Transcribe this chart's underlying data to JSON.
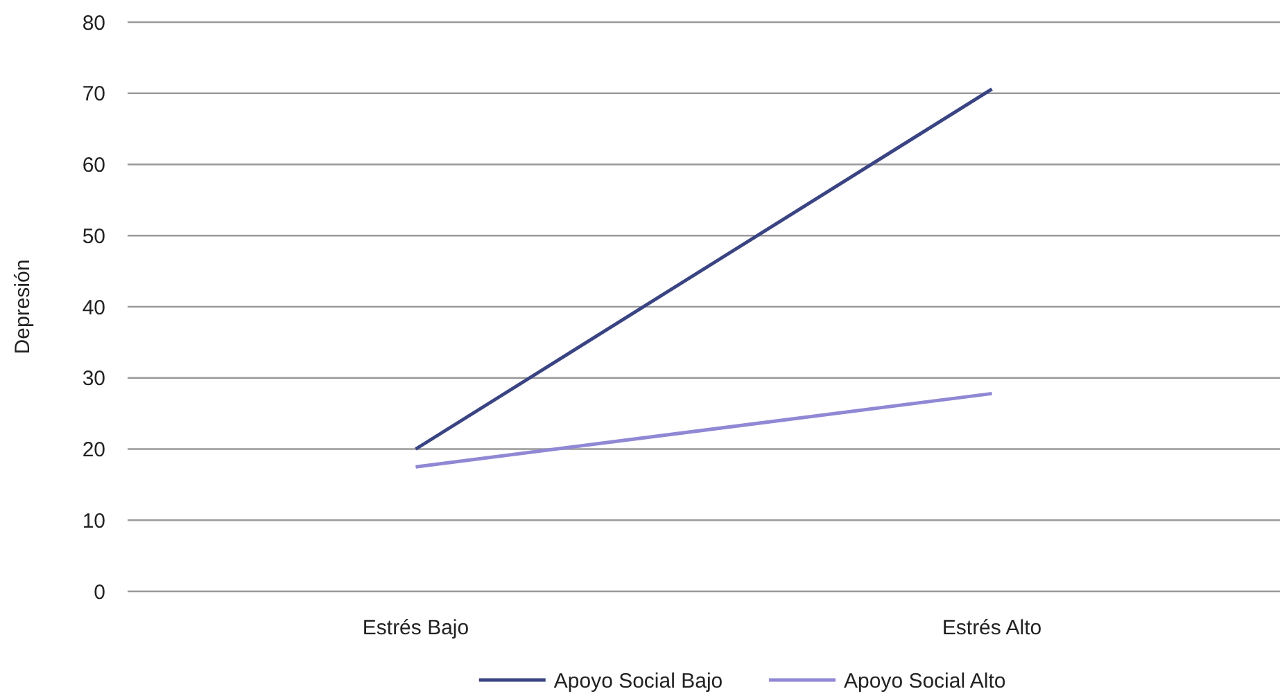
{
  "chart_data": {
    "type": "line",
    "ylabel": "Depresión",
    "categories": [
      "Estrés Bajo",
      "Estrés Alto"
    ],
    "series": [
      {
        "name": "Apoyo Social Bajo",
        "color": "#3a4482",
        "values": [
          20,
          70.6
        ]
      },
      {
        "name": "Apoyo Social Alto",
        "color": "#9088d4",
        "values": [
          17.5,
          27.8
        ]
      }
    ],
    "ylim": [
      0,
      80
    ],
    "yticks": [
      0,
      10,
      20,
      30,
      40,
      50,
      60,
      70,
      80
    ],
    "grid": "y",
    "legend": "bottom",
    "marker": "none",
    "line_style": "solid"
  }
}
